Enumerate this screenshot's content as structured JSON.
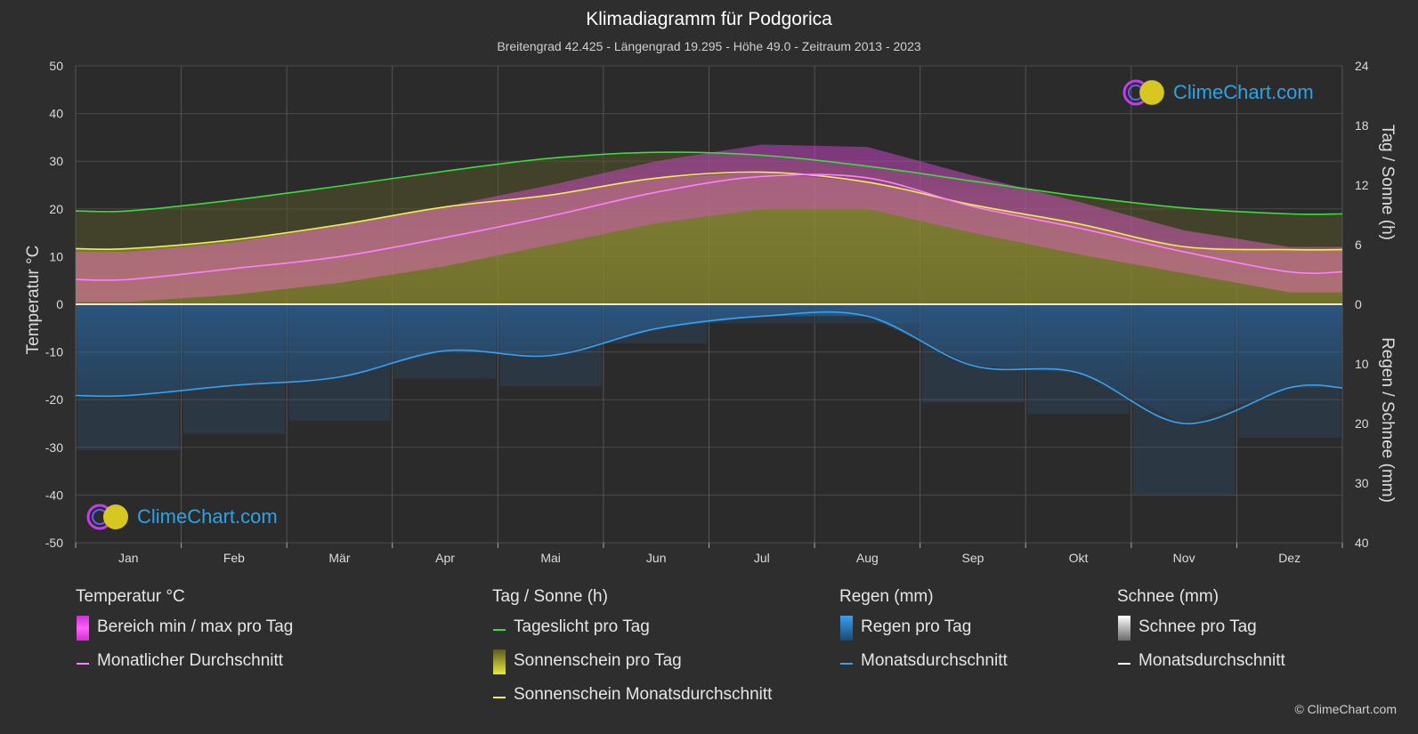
{
  "title": "Klimadiagramm für Podgorica",
  "subtitle": "Breitengrad 42.425 - Längengrad 19.295 - Höhe 49.0 - Zeitraum 2013 - 2023",
  "logo_text": "ClimeChart.com",
  "copyright": "© ClimeChart.com",
  "axes": {
    "left_label": "Temperatur °C",
    "right_top_label": "Tag / Sonne (h)",
    "right_bottom_label": "Regen / Schnee (mm)",
    "left_ticks": [
      "50",
      "40",
      "30",
      "20",
      "10",
      "0",
      "-10",
      "-20",
      "-30",
      "-40",
      "-50"
    ],
    "right_top_ticks": [
      "24",
      "18",
      "12",
      "6",
      "0"
    ],
    "right_bottom_ticks": [
      "10",
      "20",
      "30",
      "40"
    ]
  },
  "legend": {
    "temp_head": "Temperatur °C",
    "temp_range": "Bereich min / max pro Tag",
    "temp_avg": "Monatlicher Durchschnitt",
    "sun_head": "Tag / Sonne (h)",
    "daylight": "Tageslicht pro Tag",
    "sunshine_day": "Sonnenschein pro Tag",
    "sunshine_avg": "Sonnenschein Monatsdurchschnitt",
    "rain_head": "Regen (mm)",
    "rain_day": "Regen pro Tag",
    "rain_avg": "Monatsdurchschnitt",
    "snow_head": "Schnee (mm)",
    "snow_day": "Schnee pro Tag",
    "snow_avg": "Monatsdurchschnitt"
  },
  "colors": {
    "background": "#2e2e2e",
    "temp_range": "#e040e0",
    "temp_avg": "#ff80ff",
    "daylight": "#3ddc3d",
    "sunshine": "#c8c832",
    "sunshine_avg": "#f0f050",
    "rain": "#2a8fd8",
    "rain_avg": "#3aa0f0",
    "snow": "#ffffff"
  },
  "chart_data": {
    "type": "area",
    "months": [
      "Jan",
      "Feb",
      "Mär",
      "Apr",
      "Mai",
      "Jun",
      "Jul",
      "Aug",
      "Sep",
      "Okt",
      "Nov",
      "Dez"
    ],
    "temp_ylim": [
      -50,
      50
    ],
    "sun_ylim": [
      0,
      24
    ],
    "rain_ylim": [
      0,
      40
    ],
    "temp_avg": [
      5.2,
      7.5,
      10.0,
      14.0,
      18.5,
      23.5,
      26.8,
      26.5,
      20.5,
      16.0,
      11.0,
      6.8
    ],
    "temp_max_avg": [
      11.0,
      13.0,
      16.5,
      20.5,
      25.0,
      30.0,
      33.5,
      33.0,
      27.0,
      21.5,
      15.5,
      12.0
    ],
    "temp_min_avg": [
      0.5,
      2.0,
      4.5,
      8.0,
      12.5,
      17.0,
      20.0,
      20.0,
      15.0,
      10.5,
      6.5,
      2.5
    ],
    "daylight_h": [
      9.4,
      10.5,
      11.9,
      13.4,
      14.7,
      15.3,
      15.0,
      13.9,
      12.4,
      10.9,
      9.7,
      9.1
    ],
    "sunshine_h": [
      5.6,
      6.5,
      8.0,
      9.8,
      11.0,
      12.7,
      13.3,
      12.3,
      10.0,
      8.1,
      5.8,
      5.5
    ],
    "rain_mm": [
      15.3,
      13.6,
      12.2,
      7.8,
      8.6,
      4.1,
      2.0,
      2.0,
      10.3,
      11.5,
      20.0,
      14.0
    ],
    "snow_mm": [
      0,
      0,
      0,
      0,
      0,
      0,
      0,
      0,
      0,
      0,
      0,
      0
    ]
  }
}
